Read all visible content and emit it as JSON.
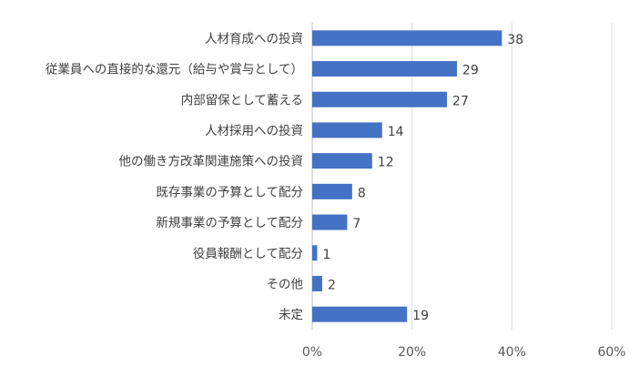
{
  "chart_data": {
    "type": "bar",
    "orientation": "horizontal",
    "categories": [
      "人材育成への投資",
      "従業員への直接的な還元（給与や賞与として）",
      "内部留保として蓄える",
      "人材採用への投資",
      "他の働き方改革関連施策への投資",
      "既存事業の予算として配分",
      "新規事業の予算として配分",
      "役員報酬として配分",
      "その他",
      "未定"
    ],
    "values": [
      38,
      29,
      27,
      14,
      12,
      8,
      7,
      1,
      2,
      19
    ],
    "xlim": [
      0,
      60
    ],
    "x_ticks": [
      "0%",
      "20%",
      "40%",
      "60%"
    ],
    "grid": "vertical",
    "bar_color": "#4472c4"
  }
}
